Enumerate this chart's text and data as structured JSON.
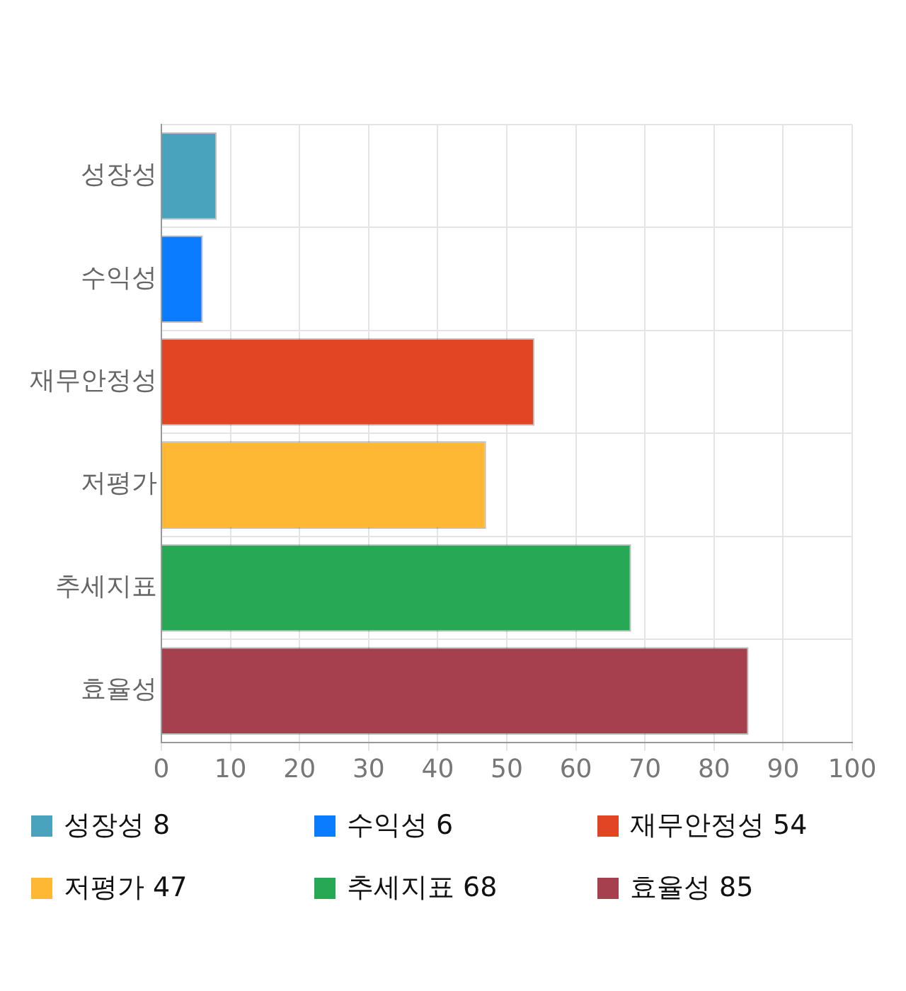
{
  "chart_data": {
    "type": "bar",
    "orientation": "horizontal",
    "categories": [
      "성장성",
      "수익성",
      "재무안정성",
      "저평가",
      "추세지표",
      "효율성"
    ],
    "values": [
      8,
      6,
      54,
      47,
      68,
      85
    ],
    "value_labels": [
      "8",
      "6",
      "54",
      "47",
      "68",
      "85"
    ],
    "colors": [
      "#4aa3bd",
      "#0a7cff",
      "#e24524",
      "#ffb833",
      "#27a854",
      "#a6404f"
    ],
    "xlim": [
      0,
      100
    ],
    "xticks": [
      0,
      10,
      20,
      30,
      40,
      50,
      60,
      70,
      80,
      90,
      100
    ],
    "grid": true
  }
}
